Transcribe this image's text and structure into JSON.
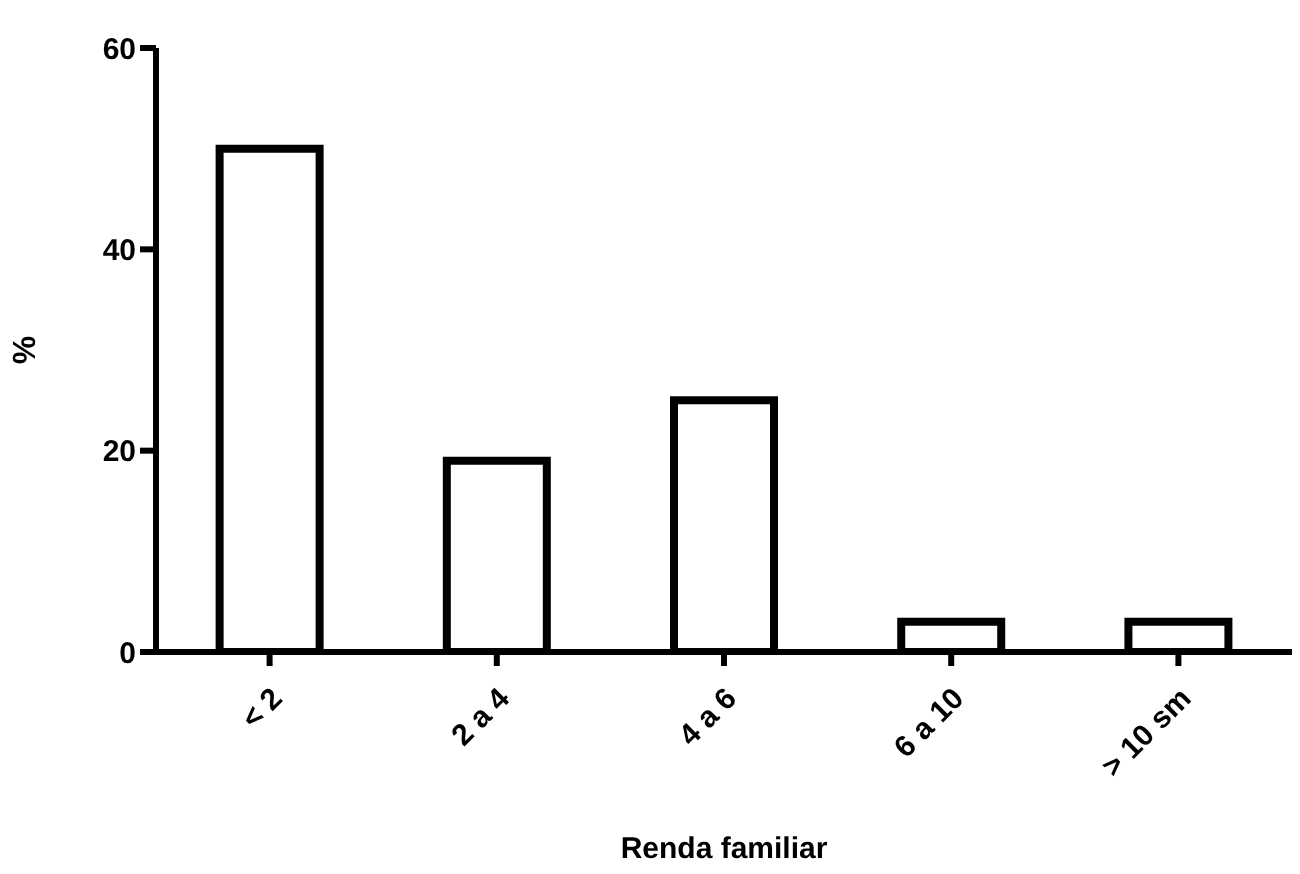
{
  "chart_data": {
    "type": "bar",
    "xlabel": "Renda familiar",
    "ylabel": "%",
    "categories": [
      "< 2",
      "2 a 4",
      "4 a 6",
      "6 a 10",
      "> 10 sm"
    ],
    "values": [
      50,
      19,
      25,
      3,
      3
    ],
    "color": "#ffffff",
    "ylim": [
      0,
      60
    ],
    "yticks": [
      0,
      20,
      40,
      60
    ],
    "grid": false,
    "legend": false
  }
}
